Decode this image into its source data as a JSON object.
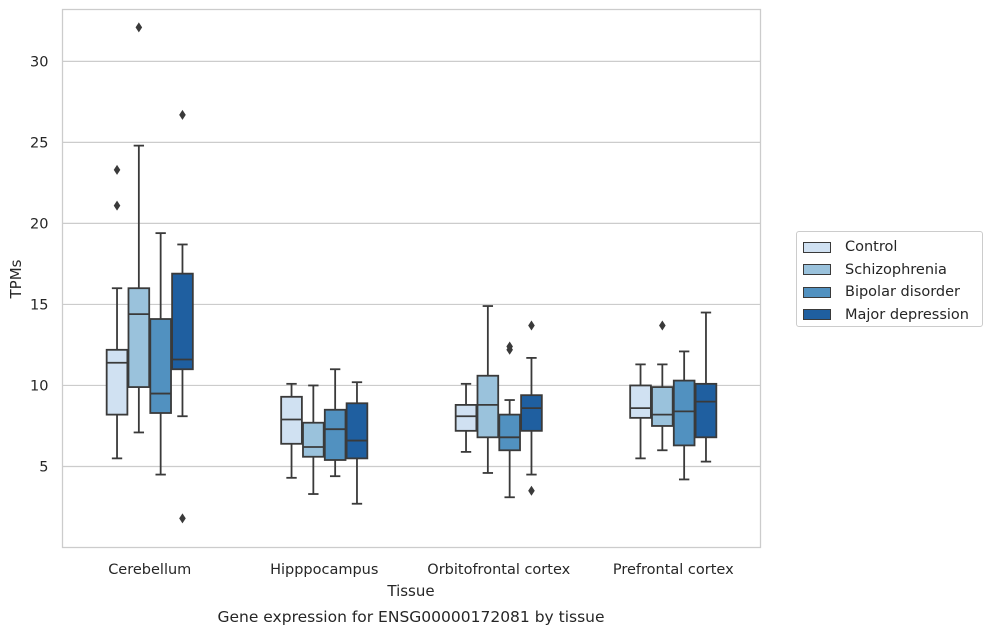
{
  "chart_data": {
    "type": "boxplot",
    "title": "",
    "caption": "Gene expression for ENSG00000172081 by tissue",
    "xlabel": "Tissue",
    "ylabel": "TPMs",
    "ylim": [
      0.0,
      33.2
    ],
    "yticks": [
      5,
      10,
      15,
      20,
      25,
      30
    ],
    "grid": "horizontal",
    "legend_position": "right",
    "categories": [
      "Cerebellum",
      "Hipppocampus",
      "Orbitofrontal cortex",
      "Prefrontal cortex"
    ],
    "series": [
      {
        "name": "Control",
        "color": "#d0e1f2",
        "boxes": [
          {
            "whislo": 5.5,
            "q1": 8.2,
            "med": 11.4,
            "q3": 12.2,
            "whishi": 16.0,
            "fliers": [
              21.1,
              23.3
            ]
          },
          {
            "whislo": 4.3,
            "q1": 6.4,
            "med": 7.9,
            "q3": 9.3,
            "whishi": 10.1,
            "fliers": []
          },
          {
            "whislo": 5.9,
            "q1": 7.2,
            "med": 8.1,
            "q3": 8.8,
            "whishi": 10.1,
            "fliers": []
          },
          {
            "whislo": 5.5,
            "q1": 8.0,
            "med": 8.6,
            "q3": 10.0,
            "whishi": 11.3,
            "fliers": []
          }
        ]
      },
      {
        "name": "Schizophrenia",
        "color": "#9ac2dc",
        "boxes": [
          {
            "whislo": 7.1,
            "q1": 9.9,
            "med": 14.4,
            "q3": 16.0,
            "whishi": 24.8,
            "fliers": [
              32.1
            ]
          },
          {
            "whislo": 3.3,
            "q1": 5.6,
            "med": 6.2,
            "q3": 7.7,
            "whishi": 10.0,
            "fliers": []
          },
          {
            "whislo": 4.6,
            "q1": 6.8,
            "med": 8.8,
            "q3": 10.6,
            "whishi": 14.9,
            "fliers": []
          },
          {
            "whislo": 6.0,
            "q1": 7.5,
            "med": 8.2,
            "q3": 9.9,
            "whishi": 11.3,
            "fliers": [
              13.7
            ]
          }
        ]
      },
      {
        "name": "Bipolar disorder",
        "color": "#5191c0",
        "boxes": [
          {
            "whislo": 4.5,
            "q1": 8.3,
            "med": 9.5,
            "q3": 14.1,
            "whishi": 19.4,
            "fliers": []
          },
          {
            "whislo": 4.4,
            "q1": 5.4,
            "med": 7.3,
            "q3": 8.5,
            "whishi": 11.0,
            "fliers": []
          },
          {
            "whislo": 3.1,
            "q1": 6.0,
            "med": 6.8,
            "q3": 8.2,
            "whishi": 9.1,
            "fliers": [
              12.2,
              12.4
            ]
          },
          {
            "whislo": 4.2,
            "q1": 6.3,
            "med": 8.4,
            "q3": 10.3,
            "whishi": 12.1,
            "fliers": []
          }
        ]
      },
      {
        "name": "Major depression",
        "color": "#1f5fa0",
        "boxes": [
          {
            "whislo": 8.1,
            "q1": 11.0,
            "med": 11.6,
            "q3": 16.9,
            "whishi": 18.7,
            "fliers": [
              1.8,
              26.7
            ]
          },
          {
            "whislo": 2.7,
            "q1": 5.5,
            "med": 6.6,
            "q3": 8.9,
            "whishi": 10.2,
            "fliers": []
          },
          {
            "whislo": 4.5,
            "q1": 7.2,
            "med": 8.6,
            "q3": 9.4,
            "whishi": 11.7,
            "fliers": [
              3.5,
              13.7
            ]
          },
          {
            "whislo": 5.3,
            "q1": 6.8,
            "med": 9.0,
            "q3": 10.1,
            "whishi": 14.5,
            "fliers": []
          }
        ]
      }
    ]
  }
}
